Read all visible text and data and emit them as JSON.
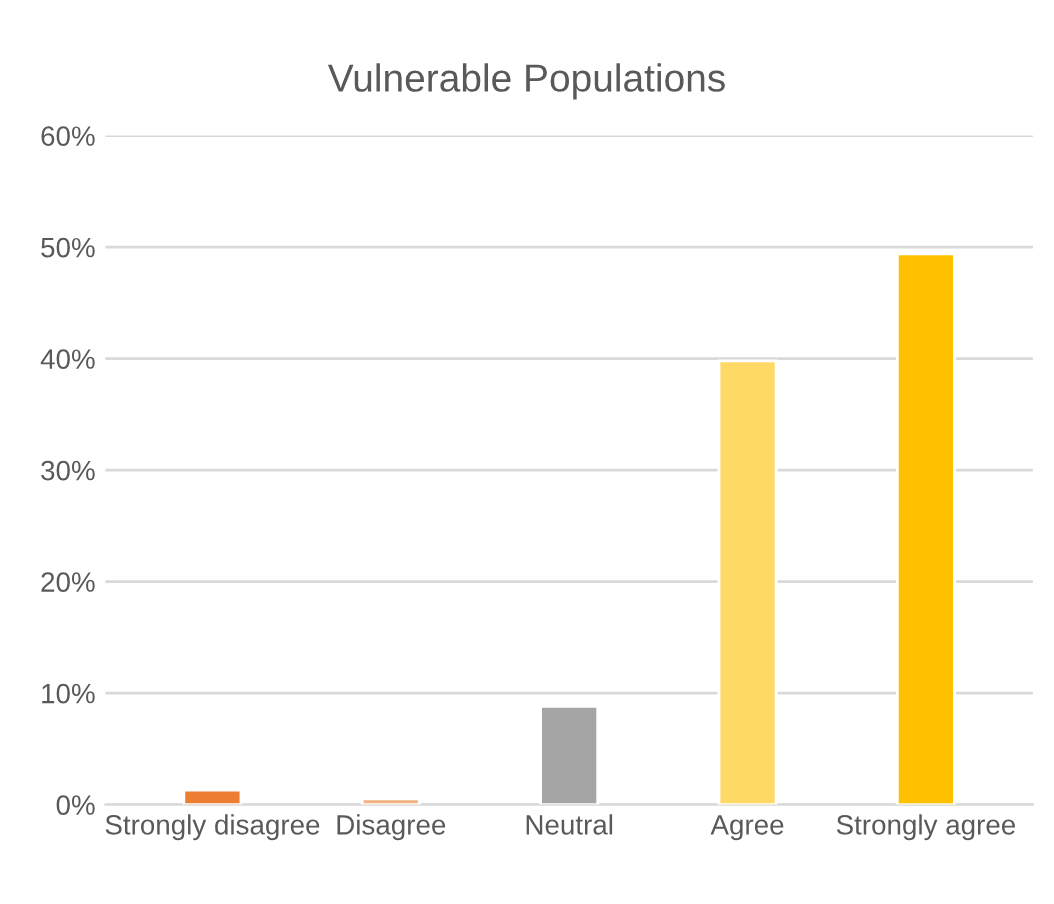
{
  "chart_data": {
    "type": "bar",
    "title": "Vulnerable Populations",
    "categories": [
      "Strongly disagree",
      "Disagree",
      "Neutral",
      "Agree",
      "Strongly agree"
    ],
    "values": [
      1.3,
      0.5,
      8.8,
      39.8,
      49.4
    ],
    "colors": [
      "#ed7d31",
      "#f4b183",
      "#a5a5a5",
      "#ffd966",
      "#ffc000"
    ],
    "ylim": [
      0,
      60
    ],
    "yticks": [
      {
        "value": 0,
        "label": "0%"
      },
      {
        "value": 10,
        "label": "10%"
      },
      {
        "value": 20,
        "label": "20%"
      },
      {
        "value": 30,
        "label": "30%"
      },
      {
        "value": 40,
        "label": "40%"
      },
      {
        "value": 50,
        "label": "50%"
      },
      {
        "value": 60,
        "label": "60%"
      }
    ],
    "grid": "y",
    "legend": false
  }
}
